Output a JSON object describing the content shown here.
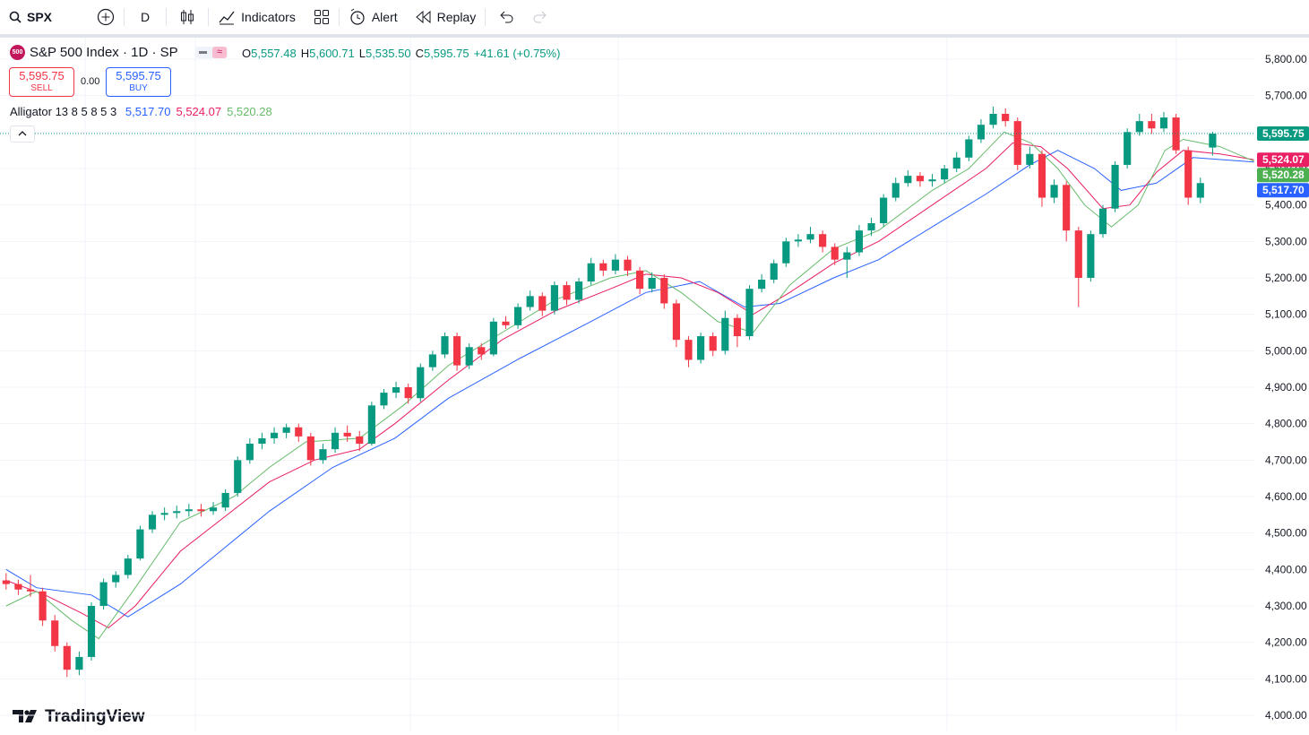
{
  "toolbar": {
    "symbol": "SPX",
    "interval": "D",
    "indicators": "Indicators",
    "alert": "Alert",
    "replay": "Replay"
  },
  "legend": {
    "badge": "500",
    "title": "S&P 500 Index · 1D · SP",
    "ohlc": [
      {
        "key": "O",
        "value": "5,557.48"
      },
      {
        "key": "H",
        "value": "5,600.71"
      },
      {
        "key": "L",
        "value": "5,535.50"
      },
      {
        "key": "C",
        "value": "5,595.75"
      }
    ],
    "change": "+41.61 (+0.75%)",
    "sell_price": "5,595.75",
    "sell": "SELL",
    "spread": "0.00",
    "buy_price": "5,595.75",
    "buy": "BUY",
    "indicator": "Alligator 13 8 5 8 5 3"
  },
  "logo": "TradingView",
  "chart_data": {
    "type": "candlestick",
    "up_color": "#089981",
    "down_color": "#f23645",
    "grid": true,
    "xlim": [
      -0.5,
      102.5
    ],
    "ylim": [
      4000,
      5800
    ],
    "yticks": [
      {
        "value": 4000,
        "label": "4,000.00"
      },
      {
        "value": 4100,
        "label": "4,100.00"
      },
      {
        "value": 4200,
        "label": "4,200.00"
      },
      {
        "value": 4300,
        "label": "4,300.00"
      },
      {
        "value": 4400,
        "label": "4,400.00"
      },
      {
        "value": 4500,
        "label": "4,500.00"
      },
      {
        "value": 4600,
        "label": "4,600.00"
      },
      {
        "value": 4700,
        "label": "4,700.00"
      },
      {
        "value": 4800,
        "label": "4,800.00"
      },
      {
        "value": 4900,
        "label": "4,900.00"
      },
      {
        "value": 5000,
        "label": "5,000.00"
      },
      {
        "value": 5100,
        "label": "5,100.00"
      },
      {
        "value": 5200,
        "label": "5,200.00"
      },
      {
        "value": 5300,
        "label": "5,300.00"
      },
      {
        "value": 5400,
        "label": "5,400.00"
      },
      {
        "value": 5500,
        "label": "5,500.00"
      },
      {
        "value": 5600,
        "label": "5,600.00"
      },
      {
        "value": 5700,
        "label": "5,700.00"
      },
      {
        "value": 5800,
        "label": "5,800.00"
      }
    ],
    "close_label": "5,595.75",
    "ohlc": [
      [
        4370,
        4390,
        4345,
        4360
      ],
      [
        4360,
        4372,
        4330,
        4345
      ],
      [
        4345,
        4385,
        4325,
        4340
      ],
      [
        4340,
        4350,
        4245,
        4260
      ],
      [
        4260,
        4275,
        4175,
        4190
      ],
      [
        4190,
        4200,
        4105,
        4125
      ],
      [
        4125,
        4175,
        4110,
        4160
      ],
      [
        4160,
        4310,
        4150,
        4300
      ],
      [
        4300,
        4375,
        4290,
        4365
      ],
      [
        4365,
        4395,
        4350,
        4385
      ],
      [
        4385,
        4440,
        4375,
        4430
      ],
      [
        4430,
        4520,
        4425,
        4510
      ],
      [
        4510,
        4560,
        4500,
        4550
      ],
      [
        4550,
        4570,
        4535,
        4555
      ],
      [
        4555,
        4575,
        4540,
        4560
      ],
      [
        4560,
        4580,
        4545,
        4565
      ],
      [
        4565,
        4580,
        4545,
        4560
      ],
      [
        4560,
        4585,
        4550,
        4570
      ],
      [
        4570,
        4620,
        4560,
        4610
      ],
      [
        4610,
        4710,
        4600,
        4700
      ],
      [
        4700,
        4760,
        4690,
        4745
      ],
      [
        4745,
        4775,
        4730,
        4760
      ],
      [
        4760,
        4790,
        4745,
        4775
      ],
      [
        4775,
        4800,
        4760,
        4790
      ],
      [
        4790,
        4800,
        4750,
        4765
      ],
      [
        4765,
        4775,
        4685,
        4700
      ],
      [
        4700,
        4745,
        4690,
        4730
      ],
      [
        4730,
        4790,
        4720,
        4775
      ],
      [
        4775,
        4795,
        4750,
        4765
      ],
      [
        4765,
        4780,
        4725,
        4745
      ],
      [
        4745,
        4860,
        4740,
        4850
      ],
      [
        4850,
        4895,
        4840,
        4885
      ],
      [
        4885,
        4915,
        4870,
        4900
      ],
      [
        4900,
        4910,
        4855,
        4870
      ],
      [
        4870,
        4965,
        4860,
        4955
      ],
      [
        4955,
        5000,
        4945,
        4990
      ],
      [
        4990,
        5050,
        4980,
        5040
      ],
      [
        5040,
        5050,
        4945,
        4960
      ],
      [
        4960,
        5020,
        4950,
        5010
      ],
      [
        5010,
        5020,
        4975,
        4990
      ],
      [
        4990,
        5090,
        4985,
        5080
      ],
      [
        5080,
        5095,
        5060,
        5070
      ],
      [
        5070,
        5130,
        5060,
        5120
      ],
      [
        5120,
        5165,
        5110,
        5150
      ],
      [
        5150,
        5160,
        5095,
        5110
      ],
      [
        5110,
        5190,
        5100,
        5180
      ],
      [
        5180,
        5190,
        5125,
        5140
      ],
      [
        5140,
        5200,
        5130,
        5190
      ],
      [
        5190,
        5255,
        5180,
        5240
      ],
      [
        5240,
        5250,
        5205,
        5220
      ],
      [
        5220,
        5265,
        5210,
        5250
      ],
      [
        5250,
        5260,
        5205,
        5220
      ],
      [
        5220,
        5230,
        5155,
        5170
      ],
      [
        5170,
        5215,
        5160,
        5200
      ],
      [
        5200,
        5210,
        5115,
        5130
      ],
      [
        5130,
        5140,
        5010,
        5030
      ],
      [
        5030,
        5040,
        4955,
        4975
      ],
      [
        4975,
        5050,
        4965,
        5040
      ],
      [
        5040,
        5050,
        4985,
        5000
      ],
      [
        5000,
        5110,
        4990,
        5090
      ],
      [
        5090,
        5100,
        5010,
        5040
      ],
      [
        5040,
        5180,
        5030,
        5170
      ],
      [
        5170,
        5210,
        5160,
        5195
      ],
      [
        5195,
        5250,
        5185,
        5240
      ],
      [
        5240,
        5310,
        5230,
        5300
      ],
      [
        5300,
        5320,
        5285,
        5305
      ],
      [
        5305,
        5340,
        5295,
        5320
      ],
      [
        5320,
        5330,
        5270,
        5285
      ],
      [
        5285,
        5295,
        5235,
        5250
      ],
      [
        5250,
        5285,
        5200,
        5270
      ],
      [
        5270,
        5345,
        5260,
        5330
      ],
      [
        5330,
        5365,
        5315,
        5350
      ],
      [
        5350,
        5430,
        5340,
        5420
      ],
      [
        5420,
        5475,
        5410,
        5460
      ],
      [
        5460,
        5495,
        5450,
        5480
      ],
      [
        5480,
        5490,
        5450,
        5465
      ],
      [
        5465,
        5485,
        5450,
        5470
      ],
      [
        5470,
        5510,
        5460,
        5500
      ],
      [
        5500,
        5545,
        5490,
        5530
      ],
      [
        5530,
        5590,
        5520,
        5580
      ],
      [
        5580,
        5635,
        5570,
        5620
      ],
      [
        5620,
        5670,
        5610,
        5650
      ],
      [
        5650,
        5665,
        5615,
        5630
      ],
      [
        5630,
        5640,
        5495,
        5510
      ],
      [
        5510,
        5560,
        5500,
        5540
      ],
      [
        5540,
        5550,
        5395,
        5420
      ],
      [
        5420,
        5470,
        5405,
        5455
      ],
      [
        5455,
        5465,
        5300,
        5330
      ],
      [
        5330,
        5340,
        5120,
        5200
      ],
      [
        5200,
        5330,
        5190,
        5320
      ],
      [
        5320,
        5400,
        5310,
        5390
      ],
      [
        5390,
        5520,
        5380,
        5510
      ],
      [
        5510,
        5610,
        5500,
        5600
      ],
      [
        5600,
        5650,
        5590,
        5630
      ],
      [
        5630,
        5650,
        5595,
        5610
      ],
      [
        5610,
        5655,
        5600,
        5640
      ],
      [
        5640,
        5650,
        5540,
        5550
      ],
      [
        5550,
        5560,
        5400,
        5420
      ],
      [
        5420,
        5475,
        5405,
        5460
      ],
      [
        5557.48,
        5600.71,
        5535.5,
        5595.75
      ]
    ],
    "series": [
      {
        "color": "#2962ff",
        "value_label": "5,517.70",
        "x": [
          0,
          2.5,
          7,
          10,
          14.3,
          21.6,
          26.8,
          31.9,
          36.3,
          42.2,
          47.4,
          52.5,
          56.9,
          60.6,
          63.5,
          67.9,
          71.6,
          76,
          80.4,
          84,
          86.3,
          89.3,
          91.5,
          94.4,
          97.4,
          102.4
        ],
        "values": [
          4400,
          4350,
          4330,
          4270,
          4360,
          4560,
          4680,
          4760,
          4870,
          4980,
          5070,
          5160,
          5190,
          5120,
          5130,
          5200,
          5250,
          5340,
          5430,
          5510,
          5550,
          5500,
          5440,
          5460,
          5530,
          5517.7
        ]
      },
      {
        "color": "#e91e63",
        "value_label": "5,524.07",
        "x": [
          0,
          3.2,
          6.2,
          8.4,
          10.6,
          14.3,
          21.6,
          25.3,
          29,
          31.9,
          36.3,
          40.7,
          45.1,
          49.6,
          52.5,
          55.4,
          58.4,
          61.3,
          64.3,
          67.9,
          71.6,
          76,
          80.4,
          82.6,
          84.9,
          87.1,
          90,
          92.2,
          94.4,
          96.6,
          99.6,
          102.4
        ],
        "values": [
          4370,
          4330,
          4280,
          4240,
          4300,
          4450,
          4640,
          4700,
          4730,
          4800,
          4920,
          5030,
          5110,
          5170,
          5210,
          5200,
          5160,
          5100,
          5160,
          5240,
          5300,
          5400,
          5500,
          5570,
          5560,
          5500,
          5390,
          5400,
          5490,
          5550,
          5540,
          5524.07
        ]
      },
      {
        "color": "#66bb6a",
        "value_label": "5,520.28",
        "x": [
          0,
          2.5,
          5.4,
          7.6,
          10.6,
          14.3,
          18.7,
          21.6,
          24.6,
          29,
          32.6,
          36.3,
          40.7,
          45.1,
          49.6,
          52.5,
          55.4,
          58.4,
          61.3,
          64.3,
          67.9,
          71.6,
          76,
          79,
          81.9,
          84.1,
          86.3,
          88.5,
          90.7,
          92.9,
          95.1,
          96.6,
          99.6,
          102.4
        ],
        "values": [
          4300,
          4340,
          4260,
          4210,
          4350,
          4530,
          4600,
          4680,
          4750,
          4760,
          4850,
          4960,
          5050,
          5140,
          5200,
          5220,
          5160,
          5080,
          5050,
          5180,
          5280,
          5330,
          5440,
          5500,
          5600,
          5570,
          5500,
          5400,
          5340,
          5400,
          5550,
          5580,
          5560,
          5520.28
        ]
      }
    ]
  }
}
